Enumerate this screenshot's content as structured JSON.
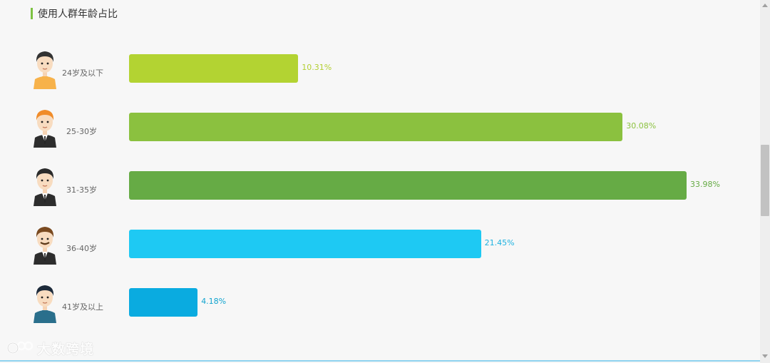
{
  "title": "使用人群年龄占比",
  "watermark": "大数跨境",
  "colors": {
    "accent": "#7dc242",
    "bars": [
      "#b3d332",
      "#8bc13f",
      "#66ab45",
      "#1ec9f3",
      "#0aabe0"
    ],
    "labels": [
      "#b3cf32",
      "#8bc13f",
      "#66ab45",
      "#1eb2e0",
      "#11a4cf"
    ]
  },
  "chart_data": {
    "type": "bar",
    "orientation": "horizontal",
    "categories": [
      "24岁及以下",
      "25-30岁",
      "31-35岁",
      "36-40岁",
      "41岁及以上"
    ],
    "values": [
      10.31,
      30.08,
      33.98,
      21.45,
      4.18
    ],
    "value_labels": [
      "10.31%",
      "30.08%",
      "33.98%",
      "21.45%",
      "4.18%"
    ],
    "title": "使用人群年龄占比",
    "xlabel": "",
    "ylabel": "",
    "unit": "%",
    "icons": [
      "boy-avatar-icon",
      "orange-hair-man-avatar-icon",
      "suit-man-avatar-icon",
      "mustache-man-avatar-icon",
      "young-man-avatar-icon"
    ],
    "grid": false,
    "legend": "none"
  }
}
